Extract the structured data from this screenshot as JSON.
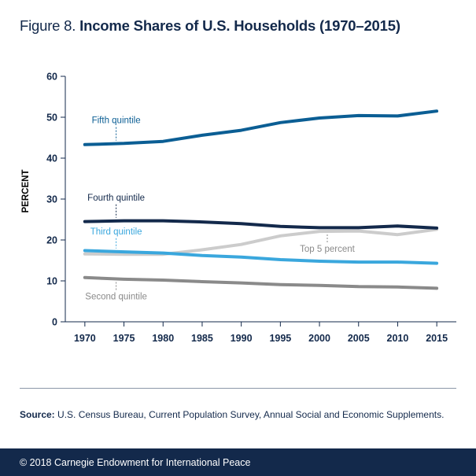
{
  "figure": {
    "number_label": "Figure 8.",
    "title": "Income Shares of U.S. Households (1970–2015)"
  },
  "chart_data": {
    "type": "line",
    "title": "Income Shares of U.S. Households (1970–2015)",
    "xlabel": "",
    "ylabel": "PERCENT",
    "x": [
      1970,
      1975,
      1980,
      1985,
      1990,
      1995,
      2000,
      2005,
      2010,
      2015
    ],
    "x_ticks": [
      "1970",
      "1975",
      "1980",
      "1985",
      "1990",
      "1995",
      "2000",
      "2005",
      "2010",
      "2015"
    ],
    "xlim": [
      1967.5,
      2017.5
    ],
    "ylim": [
      0,
      60
    ],
    "y_ticks": [
      "0",
      "10",
      "20",
      "30",
      "40",
      "50",
      "60"
    ],
    "grid": false,
    "series": [
      {
        "name": "Fifth quintile",
        "color": "#0b5e94",
        "values": [
          43.3,
          43.6,
          44.1,
          45.6,
          46.8,
          48.7,
          49.8,
          50.4,
          50.3,
          51.5
        ]
      },
      {
        "name": "Fourth quintile",
        "color": "#13294b",
        "values": [
          24.5,
          24.7,
          24.7,
          24.4,
          24.0,
          23.3,
          23.0,
          23.0,
          23.4,
          22.9
        ]
      },
      {
        "name": "Top 5 percent",
        "color": "#cccccc",
        "values": [
          16.6,
          16.5,
          16.5,
          17.6,
          18.9,
          21.0,
          22.1,
          22.2,
          21.3,
          22.6
        ]
      },
      {
        "name": "Third quintile",
        "color": "#3aa7dd",
        "values": [
          17.4,
          17.1,
          16.8,
          16.2,
          15.8,
          15.2,
          14.8,
          14.6,
          14.6,
          14.3
        ]
      },
      {
        "name": "Second quintile",
        "color": "#8a8a8a",
        "values": [
          10.8,
          10.4,
          10.2,
          9.8,
          9.5,
          9.1,
          8.9,
          8.6,
          8.5,
          8.2
        ]
      }
    ],
    "annotations": [
      {
        "series": "Fifth quintile",
        "text": "Fifth quintile",
        "color": "#0b5e94",
        "leader_at_x": 1974
      },
      {
        "series": "Fourth quintile",
        "text": "Fourth quintile",
        "color": "#13294b",
        "leader_at_x": 1974
      },
      {
        "series": "Third quintile",
        "text": "Third quintile",
        "color": "#3aa7dd",
        "leader_at_x": 1974
      },
      {
        "series": "Top 5 percent",
        "text": "Top 5 percent",
        "color": "#8a8a8a",
        "leader_at_x": 2001
      },
      {
        "series": "Second quintile",
        "text": "Second quintile",
        "color": "#8a8a8a",
        "leader_at_x": 1974
      }
    ]
  },
  "source": {
    "label": "Source:",
    "text": " U.S. Census Bureau, Current Population Survey, Annual Social and Economic Supplements."
  },
  "footer": {
    "text": "© 2018 Carnegie Endowment for International Peace"
  },
  "colors": {
    "navy": "#13294b",
    "divider": "#8b97a8"
  }
}
